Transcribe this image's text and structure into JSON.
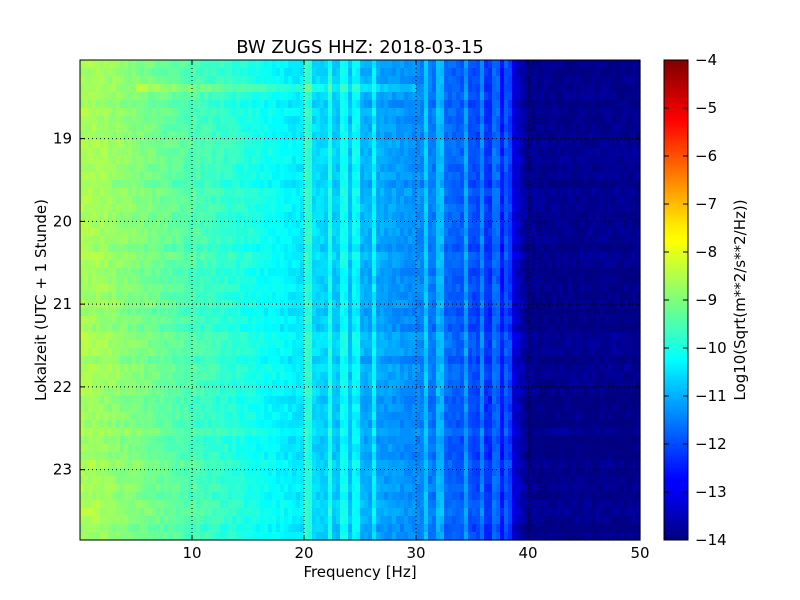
{
  "chart_data": {
    "type": "heatmap",
    "title": "BW ZUGS HHZ: 2018-03-15",
    "xlabel": "Frequency [Hz]",
    "ylabel": "Lokalzeit (UTC + 1 Stunde)",
    "xlim": [
      0,
      50
    ],
    "ylim": [
      23.85,
      18.05
    ],
    "x_ticks": [
      10,
      20,
      30,
      40,
      50
    ],
    "x_tick_labels": [
      "10",
      "20",
      "30",
      "40",
      "50"
    ],
    "y_ticks": [
      19,
      20,
      21,
      22,
      23
    ],
    "y_tick_labels": [
      "19",
      "20",
      "21",
      "22",
      "23"
    ],
    "grid": true,
    "colormap": "jet",
    "colorbar": {
      "label": "Log10(Sqrt(m**2/s**2/Hz))",
      "min": -14,
      "max": -4,
      "ticks": [
        -4,
        -5,
        -6,
        -7,
        -8,
        -9,
        -10,
        -11,
        -12,
        -13,
        -14
      ],
      "tick_labels": [
        "−4",
        "−5",
        "−6",
        "−7",
        "−8",
        "−9",
        "−10",
        "−11",
        "−12",
        "−13",
        "−14"
      ]
    },
    "spectrum_profile": {
      "frequency_hz": [
        0,
        2,
        5,
        10,
        15,
        20,
        25,
        30,
        35,
        38,
        40,
        50
      ],
      "log10_amplitude": [
        -8.6,
        -8.7,
        -9.0,
        -9.5,
        -10.0,
        -10.5,
        -11.0,
        -11.4,
        -12.0,
        -12.6,
        -13.9,
        -13.9
      ]
    },
    "spectral_lines_hz": [
      20.3,
      22.4,
      23.6,
      24.4,
      24.9,
      26.3,
      30.8,
      32.2,
      34.5,
      36.0,
      37.2,
      38.2
    ],
    "event_band_hours": [
      18.3,
      18.45
    ]
  }
}
